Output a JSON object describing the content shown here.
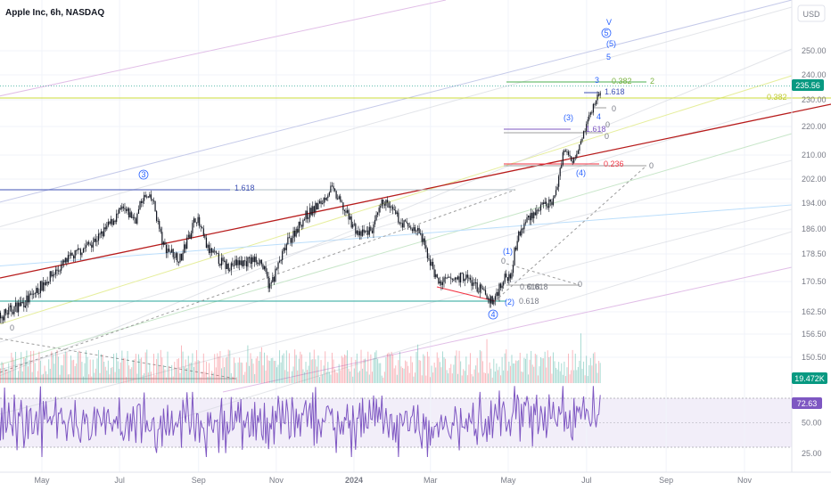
{
  "header": {
    "title": "Apple Inc, 6h, NASDAQ",
    "currency_button": "USD"
  },
  "colors": {
    "up": "#089981",
    "down": "#f23645",
    "rsi": "#7e57c2",
    "rsi_band": "#7e57c2",
    "wave_label": "#2962ff",
    "price_label_bg": "#089981"
  },
  "chart_data": [
    {
      "type": "candlestick",
      "title": "Apple Inc, 6h, NASDAQ",
      "x_tick_labels": [
        "May",
        "Jul",
        "Sep",
        "Nov",
        "2024",
        "Mar",
        "May",
        "Jul",
        "Sep",
        "Nov"
      ],
      "y_tick_labels": [
        "250.00",
        "240.00",
        "230.00",
        "220.00",
        "210.00",
        "202.00",
        "194.00",
        "186.00",
        "178.50",
        "170.50",
        "162.50",
        "156.50",
        "150.50"
      ],
      "ylim": [
        146,
        262
      ],
      "last_price": 235.56,
      "price_path_x": [
        "2023-03-24",
        "2023-04-21",
        "2023-05-05",
        "2023-05-19",
        "2023-06-16",
        "2023-07-03",
        "2023-07-14",
        "2023-07-19",
        "2023-07-27",
        "2023-08-04",
        "2023-08-18",
        "2023-08-30",
        "2023-09-08",
        "2023-09-22",
        "2023-10-05",
        "2023-10-19",
        "2023-10-27",
        "2023-11-10",
        "2023-11-24",
        "2023-12-06",
        "2023-12-14",
        "2024-01-05",
        "2024-01-16",
        "2024-01-24",
        "2024-02-07",
        "2024-02-21",
        "2024-03-07",
        "2024-03-28",
        "2024-04-19",
        "2024-04-25",
        "2024-05-03",
        "2024-05-08",
        "2024-05-17",
        "2024-06-06",
        "2024-06-11",
        "2024-06-13",
        "2024-06-20",
        "2024-06-27",
        "2024-07-05",
        "2024-07-10",
        "2024-07-12"
      ],
      "price_path_y": [
        160,
        166,
        171,
        176,
        184,
        192,
        189,
        196,
        195,
        181,
        177,
        190,
        180,
        175,
        176,
        177,
        169,
        182,
        190,
        194,
        199,
        184,
        186,
        195,
        188,
        185,
        170,
        172,
        165,
        170,
        173,
        183,
        190,
        195,
        207,
        212,
        208,
        216,
        226,
        232,
        234
      ],
      "annotations": [
        "3",
        "1.618",
        "0",
        "0.618",
        "0",
        "0.618",
        "0.618",
        "(1)",
        "(2)",
        "4",
        "0",
        "(3)",
        "1.618",
        "0",
        "0",
        "(4)",
        "0.236",
        "0",
        "3",
        "1.618",
        "0",
        "4",
        "0.382",
        "2",
        "0.382",
        "V",
        "5",
        "(5)",
        "5"
      ],
      "wave_labels": [
        "3",
        "(1)",
        "(2)",
        "4",
        "(3)",
        "(4)",
        "3",
        "4",
        "V",
        "5",
        "(5)",
        "5"
      ],
      "fib_labels": [
        "1.618",
        "0",
        "0.618",
        "0",
        "0.618",
        "0.618",
        "0",
        "1.618",
        "0",
        "0",
        "0.236",
        "0",
        "1.618",
        "0",
        "0.382",
        "2",
        "0.382"
      ]
    },
    {
      "type": "bar",
      "title": "Volume",
      "last_value_label": "19.472K"
    },
    {
      "type": "line",
      "title": "RSI",
      "y_tick_labels": [
        "50.00",
        "25.00"
      ],
      "upper_band": 70,
      "lower_band": 30,
      "mid": 50,
      "last_value": 72.63,
      "last_label": "72.63"
    }
  ]
}
